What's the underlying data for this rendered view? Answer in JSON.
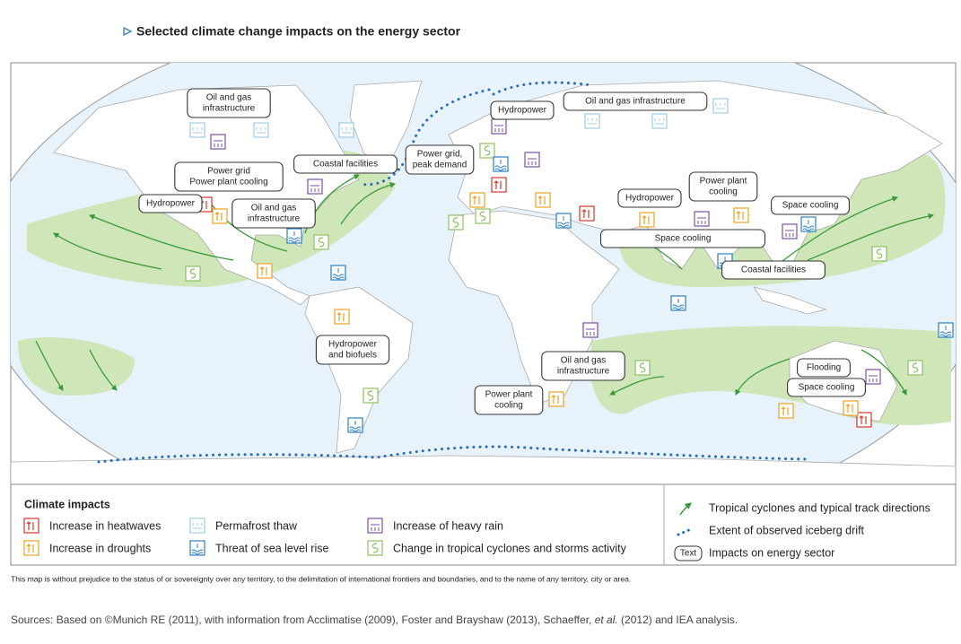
{
  "title": "Selected climate change impacts on the energy sector",
  "map_labels": [
    {
      "lines": [
        "Oil and gas",
        "infrastructure"
      ]
    },
    {
      "lines": [
        "Hydropower"
      ]
    },
    {
      "lines": [
        "Oil and gas infrastructure"
      ]
    },
    {
      "lines": [
        "Power grid",
        "Power plant cooling"
      ]
    },
    {
      "lines": [
        "Coastal facilities"
      ]
    },
    {
      "lines": [
        "Power grid,",
        "peak demand"
      ]
    },
    {
      "lines": [
        "Hydropower"
      ]
    },
    {
      "lines": [
        "Oil and gas",
        "infrastructure"
      ]
    },
    {
      "lines": [
        "Hydropower"
      ]
    },
    {
      "lines": [
        "Power plant",
        "cooling"
      ]
    },
    {
      "lines": [
        "Space cooling"
      ]
    },
    {
      "lines": [
        "Space cooling"
      ]
    },
    {
      "lines": [
        "Coastal facilities"
      ]
    },
    {
      "lines": [
        "Hydropower",
        "and biofuels"
      ]
    },
    {
      "lines": [
        "Oil and gas",
        "infrastructure"
      ]
    },
    {
      "lines": [
        "Power plant",
        "cooling"
      ]
    },
    {
      "lines": [
        "Flooding"
      ]
    },
    {
      "lines": [
        "Space cooling"
      ]
    }
  ],
  "legend": {
    "heading": "Climate impacts",
    "impacts": [
      "Increase in heatwaves",
      "Increase in droughts",
      "Permafrost thaw",
      "Threat of sea level rise",
      "Increase of heavy rain",
      "Change in tropical cyclones and storms activity"
    ],
    "symbols": [
      "Tropical cyclones and typical track directions",
      "Extent of observed iceberg drift",
      "Impacts on energy sector"
    ],
    "text_sample": "Text"
  },
  "disclaimer": "This map is without prejudice to the status of or sovereignty over any territory, to the delimitation of international frontiers and boundaries, and to the name of any territory, city or area.",
  "sources": {
    "parts": [
      "Sources: Based on ©Munich RE (2011), with information from Acclimatise (2009), Foster and Brayshaw (2013), Schaeffer, ",
      "et al.",
      " (2012) and IEA analysis."
    ]
  }
}
